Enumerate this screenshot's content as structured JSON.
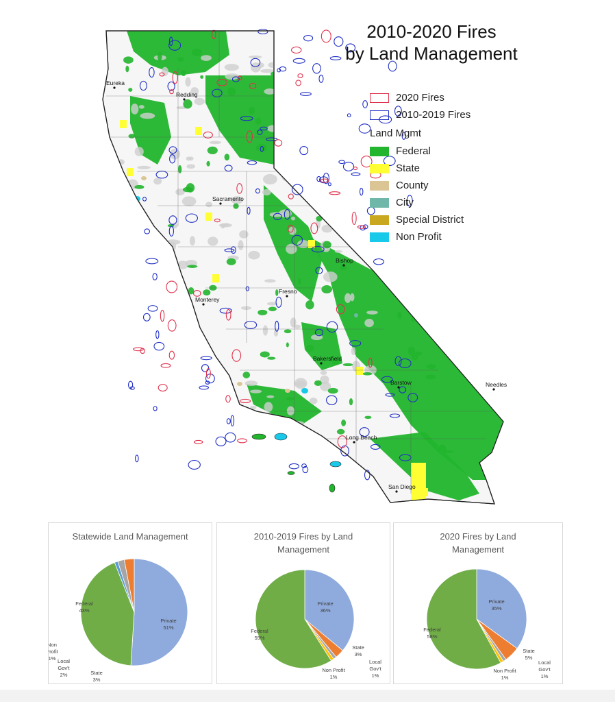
{
  "map": {
    "title_line1": "2010-2020 Fires",
    "title_line2": "by Land Management",
    "legend": {
      "fires": [
        {
          "label": "2020 Fires",
          "color": "#e0314b"
        },
        {
          "label": "2010-2019 Fires",
          "color": "#1f2fc4"
        }
      ],
      "heading": "Land Mgmt",
      "land": [
        {
          "label": "Federal",
          "color": "#22b52d"
        },
        {
          "label": "State",
          "color": "#ffff33"
        },
        {
          "label": "County",
          "color": "#dcc595"
        },
        {
          "label": "City",
          "color": "#6fb7a8"
        },
        {
          "label": "Special District",
          "color": "#c9a820"
        },
        {
          "label": "Non Profit",
          "color": "#19c9ea"
        }
      ]
    },
    "cities": [
      "Eureka",
      "Redding",
      "Sacramento",
      "Bishop",
      "Fresno",
      "Monterey",
      "Bakersfield",
      "Barstow",
      "Needles",
      "Long Beach",
      "San Diego"
    ]
  },
  "pies": [
    {
      "title_line1": "Statewide Land Management",
      "title_line2": "",
      "slices": [
        {
          "name": "Private",
          "value": 51,
          "color": "#8faadc",
          "label_lines": [
            "Private",
            "51%"
          ]
        },
        {
          "name": "Federal",
          "value": 43,
          "color": "#70ad47",
          "label_lines": [
            "Federal",
            "43%"
          ]
        },
        {
          "name": "Non Profit",
          "value": 1,
          "color": "#5b9bd5",
          "label_lines": [
            "Non",
            "Profit",
            "1%"
          ]
        },
        {
          "name": "Local Gov't",
          "value": 2,
          "color": "#a5a5a5",
          "label_lines": [
            "Local",
            "Gov't",
            "2%"
          ]
        },
        {
          "name": "State",
          "value": 3,
          "color": "#ed7d31",
          "label_lines": [
            "State",
            "3%"
          ]
        }
      ]
    },
    {
      "title_line1": "2010-2019 Fires by Land",
      "title_line2": "Management",
      "slices": [
        {
          "name": "Private",
          "value": 36,
          "color": "#8faadc",
          "label_lines": [
            "Private",
            "36%"
          ]
        },
        {
          "name": "State",
          "value": 3,
          "color": "#ed7d31",
          "label_lines": [
            "State",
            "3%"
          ]
        },
        {
          "name": "Local Gov't",
          "value": 1,
          "color": "#a5a5a5",
          "label_lines": [
            "Local",
            "Gov't",
            "1%"
          ]
        },
        {
          "name": "Non Profit",
          "value": 1,
          "color": "#ffc000",
          "label_lines": [
            "Non Profit",
            "1%"
          ]
        },
        {
          "name": "Federal",
          "value": 59,
          "color": "#70ad47",
          "label_lines": [
            "Federal",
            "59%"
          ]
        }
      ]
    },
    {
      "title_line1": "2020 Fires by Land",
      "title_line2": "Management",
      "slices": [
        {
          "name": "Private",
          "value": 35,
          "color": "#8faadc",
          "label_lines": [
            "Private",
            "35%"
          ]
        },
        {
          "name": "State",
          "value": 5,
          "color": "#ed7d31",
          "label_lines": [
            "State",
            "5%"
          ]
        },
        {
          "name": "Local Gov't",
          "value": 1,
          "color": "#a5a5a5",
          "label_lines": [
            "Local",
            "Gov't",
            "1%"
          ]
        },
        {
          "name": "Non Profit",
          "value": 1,
          "color": "#ffc000",
          "label_lines": [
            "Non Profit",
            "1%"
          ]
        },
        {
          "name": "Federal",
          "value": 58,
          "color": "#70ad47",
          "label_lines": [
            "Federal",
            "58%"
          ]
        }
      ]
    }
  ]
}
